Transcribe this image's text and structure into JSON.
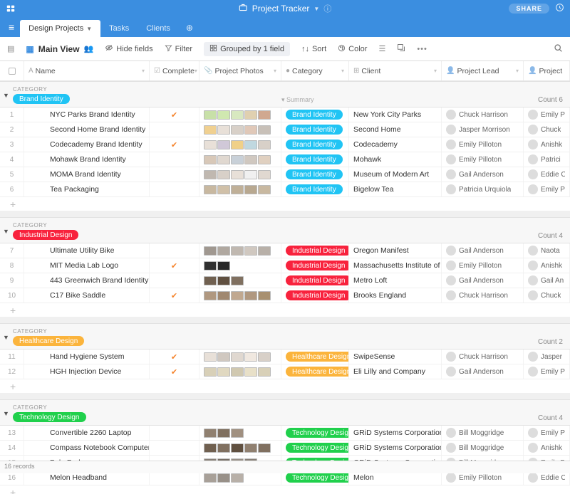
{
  "topbar": {
    "title": "Project Tracker",
    "share_label": "SHARE"
  },
  "tabs": [
    {
      "label": "Design Projects",
      "active": true
    },
    {
      "label": "Tasks",
      "active": false
    },
    {
      "label": "Clients",
      "active": false
    }
  ],
  "toolbar": {
    "view_name": "Main View",
    "hide_fields": "Hide fields",
    "filter": "Filter",
    "grouped": "Grouped by 1 field",
    "sort": "Sort",
    "color": "Color"
  },
  "columns": {
    "name": "Name",
    "complete": "Complete",
    "photos": "Project Photos",
    "category": "Category",
    "client": "Client",
    "lead": "Project Lead",
    "project": "Project"
  },
  "category_label": "CATEGORY",
  "count_label": "Count",
  "summary_label": "Summary",
  "pill_colors": {
    "Brand Identity": "#20c4f4",
    "Industrial Design": "#f8223d",
    "Healthcare Design": "#fbb43c",
    "Technology Design": "#20d04c"
  },
  "groups": [
    {
      "name": "Brand Identity",
      "count": 6,
      "show_summary": true,
      "rows": [
        {
          "n": 1,
          "name": "NYC Parks Brand Identity",
          "complete": true,
          "photos": 5,
          "client": "New York City Parks",
          "lead": "Chuck Harrison",
          "collab": "Emily P",
          "thumb_colors": [
            "#c8e0a8",
            "#d0e8b0",
            "#d8e8c0",
            "#e0d0b0",
            "#d0a890"
          ]
        },
        {
          "n": 2,
          "name": "Second Home Brand Identity",
          "complete": false,
          "photos": 5,
          "client": "Second Home",
          "lead": "Jasper Morrison",
          "collab": "Chuck",
          "thumb_colors": [
            "#f0d090",
            "#e8e0d8",
            "#d8d0c8",
            "#e0c8b8",
            "#c8c0b8"
          ]
        },
        {
          "n": 3,
          "name": "Codecademy Brand Identity",
          "complete": true,
          "photos": 5,
          "client": "Codecademy",
          "lead": "Emily Pilloton",
          "collab": "Anishk",
          "thumb_colors": [
            "#e8e0d8",
            "#d0c8d8",
            "#f0d088",
            "#c0d8e0",
            "#d8d0c8"
          ]
        },
        {
          "n": 4,
          "name": "Mohawk Brand Identity",
          "complete": false,
          "photos": 5,
          "client": "Mohawk",
          "lead": "Emily Pilloton",
          "collab": "Patrici",
          "thumb_colors": [
            "#d8c8b8",
            "#e0d8d0",
            "#c8d0d8",
            "#d0c8c0",
            "#e0d0c0"
          ]
        },
        {
          "n": 5,
          "name": "MOMA Brand Identity",
          "complete": false,
          "photos": 5,
          "client": "Museum of Modern Art",
          "lead": "Gail Anderson",
          "collab": "Eddie C",
          "thumb_colors": [
            "#c0b8b0",
            "#d8d0c8",
            "#e8e0d8",
            "#f0f0f0",
            "#e0d8d0"
          ]
        },
        {
          "n": 6,
          "name": "Tea Packaging",
          "complete": false,
          "photos": 5,
          "client": "Bigelow Tea",
          "lead": "Patricia Urquiola",
          "collab": "Emily P",
          "thumb_colors": [
            "#c8b8a0",
            "#d0c0a8",
            "#c0b098",
            "#b8a890",
            "#c8b8a0"
          ]
        }
      ]
    },
    {
      "name": "Industrial Design",
      "count": 4,
      "rows": [
        {
          "n": 7,
          "name": "Ultimate Utility Bike",
          "complete": false,
          "photos": 5,
          "client": "Oregon Manifest",
          "lead": "Gail Anderson",
          "collab": "Naota",
          "thumb_colors": [
            "#a09890",
            "#b0a8a0",
            "#c0b8b0",
            "#d0c8c0",
            "#b8b0a8"
          ]
        },
        {
          "n": 8,
          "name": "MIT Media Lab Logo",
          "complete": true,
          "photos": 2,
          "client": "Massachusetts Institute of Tech",
          "lead": "Emily Pilloton",
          "collab": "Anishk",
          "thumb_colors": [
            "#303030",
            "#282828"
          ]
        },
        {
          "n": 9,
          "name": "443 Greenwich Brand Identity",
          "complete": false,
          "photos": 3,
          "client": "Metro Loft",
          "lead": "Gail Anderson",
          "collab": "Gail An",
          "thumb_colors": [
            "#706050",
            "#605040",
            "#807060"
          ]
        },
        {
          "n": 10,
          "name": "C17 Bike Saddle",
          "complete": true,
          "photos": 5,
          "client": "Brooks England",
          "lead": "Chuck Harrison",
          "collab": "Chuck",
          "thumb_colors": [
            "#b09880",
            "#a08870",
            "#c0a890",
            "#b09880",
            "#a89070"
          ]
        }
      ]
    },
    {
      "name": "Healthcare Design",
      "count": 2,
      "rows": [
        {
          "n": 11,
          "name": "Hand Hygiene System",
          "complete": true,
          "photos": 5,
          "client": "SwipeSense",
          "lead": "Chuck Harrison",
          "collab": "Jasper",
          "thumb_colors": [
            "#e8e0d8",
            "#d0c8c0",
            "#e0d8d0",
            "#f0e8e0",
            "#d8d0c8"
          ]
        },
        {
          "n": 12,
          "name": "HGH Injection Device",
          "complete": true,
          "photos": 5,
          "client": "Eli Lilly and Company",
          "lead": "Gail Anderson",
          "collab": "Emily P",
          "thumb_colors": [
            "#d8d0b8",
            "#e0d8c0",
            "#d0c8b0",
            "#e8e0c8",
            "#d8d0b8"
          ]
        }
      ]
    },
    {
      "name": "Technology Design",
      "count": 4,
      "rows": [
        {
          "n": 13,
          "name": "Convertible 2260 Laptop",
          "complete": false,
          "photos": 3,
          "client": "GRiD Systems Corporation",
          "lead": "Bill Moggridge",
          "collab": "Emily P",
          "thumb_colors": [
            "#908070",
            "#807060",
            "#a09080"
          ]
        },
        {
          "n": 14,
          "name": "Compass Notebook Computer",
          "complete": false,
          "photos": 5,
          "client": "GRiD Systems Corporation",
          "lead": "Bill Moggridge",
          "collab": "Anishk",
          "thumb_colors": [
            "#706050",
            "#807060",
            "#605040",
            "#908070",
            "#807060"
          ]
        },
        {
          "n": 15,
          "name": "PalmPad",
          "complete": false,
          "photos": 4,
          "client": "GRiD Systems Corporation",
          "lead": "Bill Moggridge",
          "collab": "Emily P",
          "thumb_colors": [
            "#888078",
            "#787068",
            "#989088",
            "#888078"
          ]
        },
        {
          "n": 16,
          "name": "Melon Headband",
          "complete": false,
          "photos": 3,
          "client": "Melon",
          "lead": "Emily Pilloton",
          "collab": "Eddie C",
          "thumb_colors": [
            "#a8a098",
            "#989088",
            "#b8b0a8"
          ]
        }
      ]
    }
  ],
  "statusbar": {
    "records": "16 records"
  }
}
